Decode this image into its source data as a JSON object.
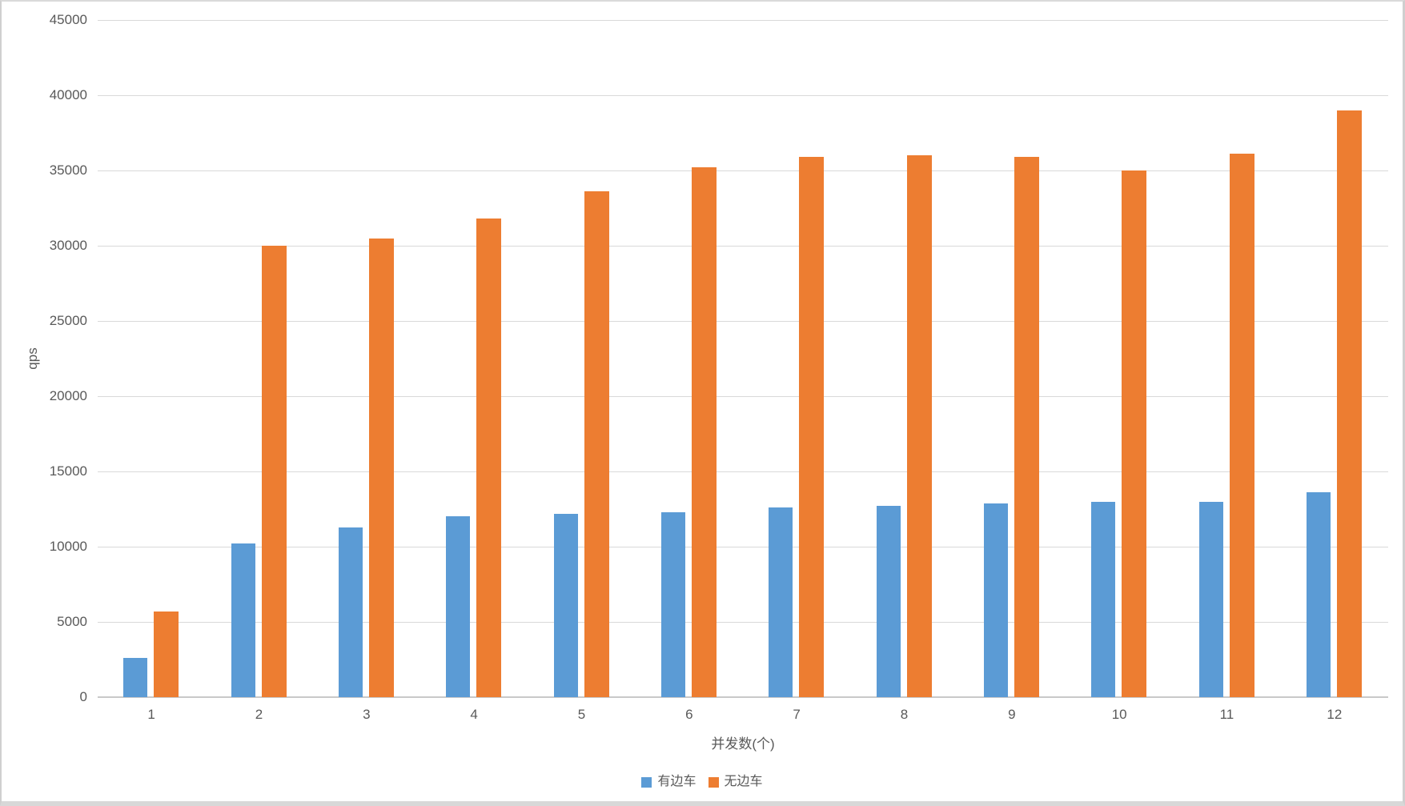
{
  "chart_data": {
    "type": "bar",
    "title": "",
    "categories": [
      "1",
      "2",
      "3",
      "4",
      "5",
      "6",
      "7",
      "8",
      "9",
      "10",
      "11",
      "12"
    ],
    "series": [
      {
        "name": "有边车",
        "key": "with-sidecar",
        "color": "#5B9BD5",
        "values": [
          2600,
          10200,
          11300,
          12000,
          12200,
          12300,
          12600,
          12700,
          12900,
          13000,
          13000,
          13600
        ]
      },
      {
        "name": "无边车",
        "key": "without-sidecar",
        "color": "#ED7D31",
        "values": [
          5700,
          30000,
          30500,
          31800,
          33600,
          35200,
          35900,
          36000,
          35900,
          35000,
          36100,
          39000
        ]
      }
    ],
    "xlabel": "并发数(个)",
    "ylabel": "qps",
    "ylim": [
      0,
      45000
    ],
    "ytick_step": 5000,
    "ytick_labels": [
      "0",
      "5000",
      "10000",
      "15000",
      "20000",
      "25000",
      "30000",
      "35000",
      "40000",
      "45000"
    ],
    "grid": true,
    "legend_position": "bottom",
    "colors": {
      "gridline": "#d9d9d9",
      "baseline": "#c9c9c9",
      "tick_text": "#595959",
      "axis_title_text": "#595959"
    }
  }
}
